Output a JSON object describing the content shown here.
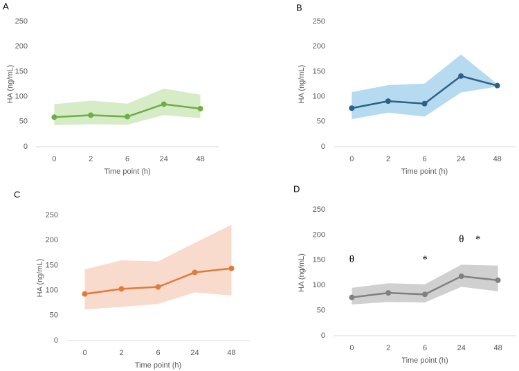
{
  "chart_data": [
    {
      "type": "line",
      "panel": "A",
      "ylabel": "HA (ng/mL)",
      "xlabel": "Time point (h)",
      "categories": [
        "0",
        "2",
        "6",
        "24",
        "48"
      ],
      "ylim": [
        0,
        250
      ],
      "yticks": [
        0,
        50,
        100,
        150,
        200,
        250
      ],
      "series": [
        {
          "color": "#70ad47",
          "band_color": "#d6ecc6",
          "values": [
            59,
            63,
            60,
            85,
            76
          ],
          "band_lower": [
            43,
            45,
            44,
            63,
            57
          ],
          "band_upper": [
            85,
            92,
            86,
            116,
            104
          ]
        }
      ]
    },
    {
      "type": "line",
      "panel": "B",
      "ylabel": "HA (ng/mL)",
      "xlabel": "Time point (h)",
      "categories": [
        "0",
        "2",
        "6",
        "24",
        "48"
      ],
      "ylim": [
        0,
        250
      ],
      "yticks": [
        0,
        50,
        100,
        150,
        200,
        250
      ],
      "series": [
        {
          "color": "#2e5f86",
          "band_color": "#b6daf0",
          "values": [
            77,
            91,
            86,
            141,
            122
          ],
          "band_lower": [
            55,
            68,
            60,
            108,
            120
          ],
          "band_upper": [
            109,
            123,
            126,
            184,
            125
          ]
        }
      ]
    },
    {
      "type": "line",
      "panel": "C",
      "ylabel": "HA (ng/mL)",
      "xlabel": "Time point (h)",
      "categories": [
        "0",
        "2",
        "6",
        "24",
        "48"
      ],
      "ylim": [
        0,
        250
      ],
      "yticks": [
        0,
        50,
        100,
        150,
        200,
        250
      ],
      "series": [
        {
          "color": "#e07b39",
          "band_color": "#f8dbcc",
          "values": [
            93,
            103,
            107,
            136,
            144
          ],
          "band_lower": [
            62,
            67,
            73,
            96,
            90
          ],
          "band_upper": [
            142,
            160,
            158,
            195,
            231
          ]
        }
      ]
    },
    {
      "type": "line",
      "panel": "D",
      "ylabel": "HA (ng/mL)",
      "xlabel": "Time point (h)",
      "categories": [
        "0",
        "2",
        "6",
        "24",
        "48"
      ],
      "ylim": [
        0,
        250
      ],
      "yticks": [
        0,
        50,
        100,
        150,
        200,
        250
      ],
      "series": [
        {
          "color": "#808080",
          "band_color": "#d0d0d0",
          "values": [
            76,
            85,
            82,
            118,
            110
          ],
          "band_lower": [
            62,
            67,
            66,
            97,
            88
          ],
          "band_upper": [
            95,
            104,
            102,
            141,
            139
          ]
        }
      ],
      "annotations": [
        {
          "text": "θ"
        },
        {
          "text": "*"
        },
        {
          "text": "θ"
        },
        {
          "text": "*"
        }
      ]
    }
  ]
}
